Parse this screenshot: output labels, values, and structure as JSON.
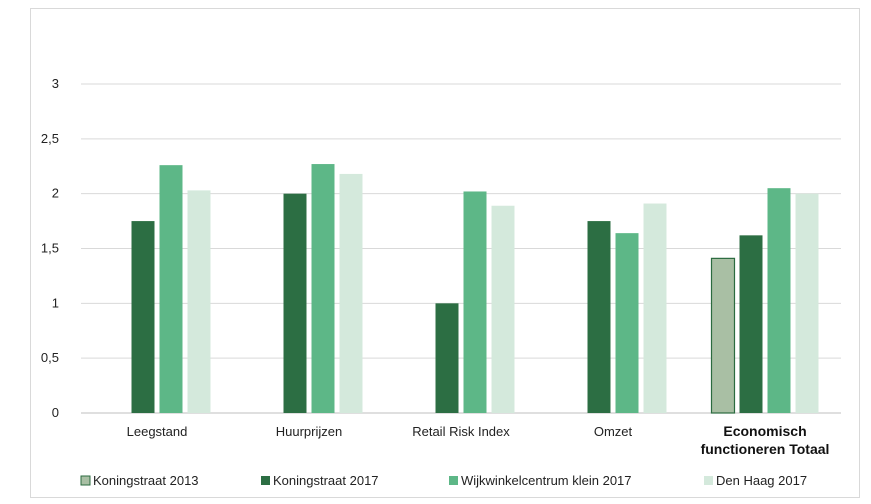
{
  "chart_data": {
    "type": "bar",
    "title": "",
    "xlabel": "",
    "ylabel": "",
    "ylim": [
      0,
      3
    ],
    "yticks": [
      "0",
      "0,5",
      "1",
      "1,5",
      "2",
      "2,5",
      "3"
    ],
    "ytick_values": [
      0,
      0.5,
      1,
      1.5,
      2,
      2.5,
      3
    ],
    "grid": true,
    "legend_position": "bottom",
    "categories": [
      {
        "lines": [
          "Leegstand"
        ],
        "bold": false
      },
      {
        "lines": [
          "Huurprijzen"
        ],
        "bold": false
      },
      {
        "lines": [
          "Retail Risk Index"
        ],
        "bold": false
      },
      {
        "lines": [
          "Omzet"
        ],
        "bold": false
      },
      {
        "lines": [
          "Economisch",
          "functioneren Totaal"
        ],
        "bold": true
      }
    ],
    "series": [
      {
        "name": "Koningstraat 2013",
        "color": "#a9bfa4",
        "outline": "#2b6b3f",
        "values": [
          null,
          null,
          null,
          null,
          1.41
        ]
      },
      {
        "name": "Koningstraat 2017",
        "color": "#2c6e43",
        "values": [
          1.75,
          2.0,
          1.0,
          1.75,
          1.62
        ]
      },
      {
        "name": "Wijkwinkelcentrum klein 2017",
        "color": "#5db787",
        "values": [
          2.26,
          2.27,
          2.02,
          1.64,
          2.05
        ]
      },
      {
        "name": "Den Haag 2017",
        "color": "#d4e9dc",
        "values": [
          2.03,
          2.18,
          1.89,
          1.91,
          2.0
        ]
      }
    ]
  }
}
